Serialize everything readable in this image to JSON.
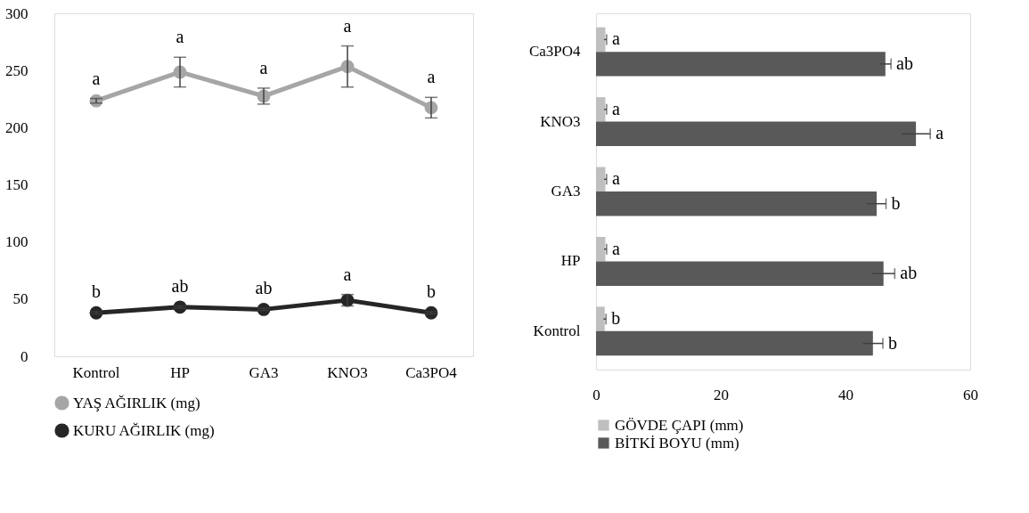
{
  "chart_data": [
    {
      "type": "line",
      "categories": [
        "Kontrol",
        "HP",
        "GA3",
        "KNO3",
        "Ca3PO4"
      ],
      "ylim": [
        0,
        300
      ],
      "yticks": [
        0,
        50,
        100,
        150,
        200,
        250,
        300
      ],
      "grid": false,
      "legend": "bottom",
      "marker": "circle",
      "line_style": "solid",
      "series": [
        {
          "name": "YAŞ AĞIRLIK (mg)",
          "color": "#a6a6a6",
          "values": [
            223.5,
            248.6,
            227.6,
            253.5,
            217.5
          ],
          "errors": [
            2,
            13,
            7,
            18,
            9
          ],
          "value_labels": [
            "a",
            "a",
            "a",
            "a",
            "a"
          ]
        },
        {
          "name": "KURU AĞIRLIK (mg)",
          "color": "#262626",
          "values": [
            38,
            43,
            41,
            49,
            38
          ],
          "errors": [
            1,
            1,
            1,
            5,
            1
          ],
          "value_labels": [
            "b",
            "ab",
            "ab",
            "a",
            "b"
          ]
        }
      ]
    },
    {
      "type": "bar",
      "orientation": "horizontal",
      "categories": [
        "Ca3PO4",
        "KNO3",
        "GA3",
        "HP",
        "Kontrol"
      ],
      "xlim": [
        0,
        60
      ],
      "xticks": [
        0,
        20,
        40,
        60
      ],
      "grid": false,
      "legend": "bottom",
      "series": [
        {
          "name": "GÖVDE ÇAPI (mm)",
          "color": "#bfbfbf",
          "values": [
            1.5,
            1.5,
            1.5,
            1.5,
            1.4
          ],
          "errors": [
            0.2,
            0.2,
            0.2,
            0.2,
            0.2
          ],
          "value_labels": [
            "a",
            "a",
            "a",
            "a",
            "b"
          ]
        },
        {
          "name": "BİTKİ BOYU (mm)",
          "color": "#595959",
          "values": [
            46.4,
            51.3,
            45.0,
            46.1,
            44.4
          ],
          "errors": [
            0.9,
            2.3,
            1.5,
            1.8,
            1.6
          ],
          "value_labels": [
            "ab",
            "a",
            "b",
            "ab",
            "b"
          ]
        }
      ]
    }
  ]
}
